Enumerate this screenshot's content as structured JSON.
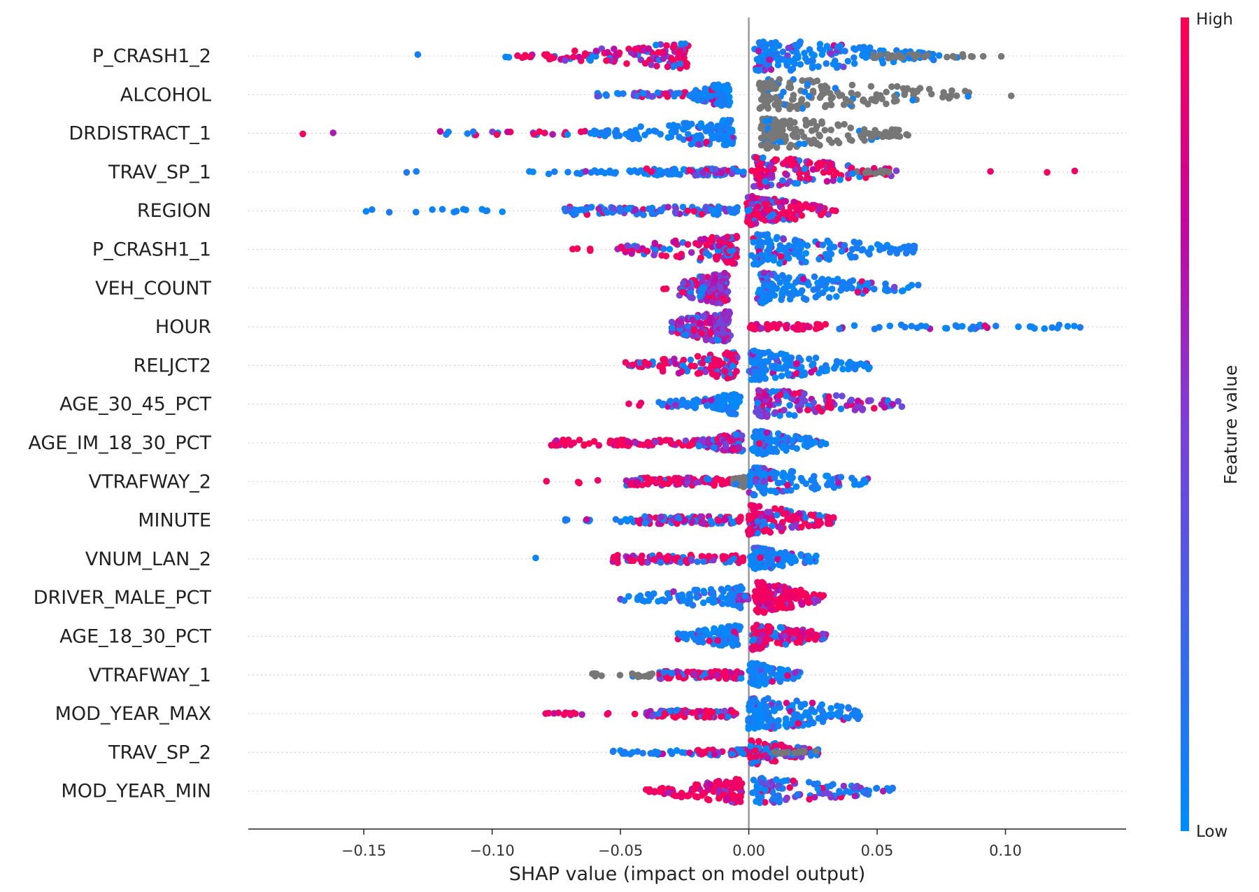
{
  "chart_data": {
    "type": "scatter",
    "subtype": "shap-beeswarm",
    "xlabel": "SHAP value (impact on model output)",
    "ylabel": "",
    "xlim": [
      -0.195,
      0.147
    ],
    "xticks": [
      -0.15,
      -0.1,
      -0.05,
      0.0,
      0.05,
      0.1
    ],
    "xtick_labels": [
      "−0.15",
      "−0.10",
      "−0.05",
      "0.00",
      "0.05",
      "0.10"
    ],
    "zero_line": true,
    "row_gridlines": "dotted",
    "colorbar": {
      "title": "Feature value",
      "high_label": "High",
      "low_label": "Low",
      "high_color": "#ff0051",
      "low_color": "#008bfb",
      "missing_color": "#777777",
      "placement": "right"
    },
    "features": [
      {
        "name": "P_CRASH1_2",
        "clusters": [
          {
            "xmin": -0.129,
            "xmax": -0.128,
            "n": 1,
            "color": "low"
          },
          {
            "xmin": -0.095,
            "xmax": -0.078,
            "n": 14,
            "color": "mixed"
          },
          {
            "xmin": -0.078,
            "xmax": -0.015,
            "n": 120,
            "color": "high-purple",
            "peak": -0.025
          },
          {
            "xmin": 0.001,
            "xmax": 0.072,
            "n": 180,
            "color": "low",
            "peak": 0.004
          },
          {
            "xmin": 0.045,
            "xmax": 0.07,
            "n": 30,
            "color": "missing"
          },
          {
            "xmin": 0.074,
            "xmax": 0.1,
            "n": 12,
            "color": "missing"
          }
        ]
      },
      {
        "name": "ALCOHOL",
        "clusters": [
          {
            "xmin": -0.06,
            "xmax": -0.045,
            "n": 8,
            "color": "low"
          },
          {
            "xmin": -0.045,
            "xmax": -0.02,
            "n": 40,
            "color": "mixed"
          },
          {
            "xmin": -0.022,
            "xmax": -0.004,
            "n": 110,
            "color": "low",
            "peak": -0.009
          },
          {
            "xmin": 0.002,
            "xmax": 0.09,
            "n": 170,
            "color": "missing",
            "peak": 0.006
          },
          {
            "xmin": 0.1,
            "xmax": 0.104,
            "n": 1,
            "color": "missing"
          }
        ]
      },
      {
        "name": "DRDISTRACT_1",
        "clusters": [
          {
            "xmin": -0.18,
            "xmax": -0.155,
            "n": 2,
            "color": "high"
          },
          {
            "xmin": -0.123,
            "xmax": -0.065,
            "n": 22,
            "color": "mixed"
          },
          {
            "xmin": -0.065,
            "xmax": -0.004,
            "n": 130,
            "color": "low",
            "peak": -0.007
          },
          {
            "xmin": 0.002,
            "xmax": 0.063,
            "n": 170,
            "color": "missing",
            "peak": 0.006
          }
        ]
      },
      {
        "name": "TRAV_SP_1",
        "clusters": [
          {
            "xmin": -0.135,
            "xmax": -0.12,
            "n": 2,
            "color": "low"
          },
          {
            "xmin": -0.09,
            "xmax": -0.04,
            "n": 28,
            "color": "low"
          },
          {
            "xmin": -0.04,
            "xmax": -0.002,
            "n": 80,
            "color": "low-purple"
          },
          {
            "xmin": -0.005,
            "xmax": 0.058,
            "n": 150,
            "color": "high-purple",
            "peak": 0.003
          },
          {
            "xmin": 0.04,
            "xmax": 0.058,
            "n": 12,
            "color": "missing"
          },
          {
            "xmin": 0.092,
            "xmax": 0.133,
            "n": 3,
            "color": "high"
          }
        ]
      },
      {
        "name": "REGION",
        "clusters": [
          {
            "xmin": -0.15,
            "xmax": -0.095,
            "n": 14,
            "color": "low"
          },
          {
            "xmin": -0.072,
            "xmax": -0.004,
            "n": 110,
            "color": "low-purple"
          },
          {
            "xmin": -0.002,
            "xmax": 0.034,
            "n": 140,
            "color": "high-purple",
            "peak": 0.001
          }
        ]
      },
      {
        "name": "P_CRASH1_1",
        "clusters": [
          {
            "xmin": -0.077,
            "xmax": -0.06,
            "n": 4,
            "color": "high"
          },
          {
            "xmin": -0.053,
            "xmax": -0.002,
            "n": 130,
            "color": "high-purple",
            "peak": -0.006
          },
          {
            "xmin": 0.001,
            "xmax": 0.066,
            "n": 160,
            "color": "low",
            "peak": 0.003
          }
        ]
      },
      {
        "name": "VEH_COUNT",
        "clusters": [
          {
            "xmin": -0.038,
            "xmax": -0.03,
            "n": 2,
            "color": "high"
          },
          {
            "xmin": -0.027,
            "xmax": 0.001,
            "n": 150,
            "color": "purple",
            "peak": -0.01
          },
          {
            "xmin": 0.003,
            "xmax": 0.066,
            "n": 150,
            "color": "low",
            "peak": 0.005
          }
        ]
      },
      {
        "name": "HOUR",
        "clusters": [
          {
            "xmin": -0.03,
            "xmax": 0.0,
            "n": 160,
            "color": "purple",
            "peak": -0.009
          },
          {
            "xmin": 0.0,
            "xmax": 0.03,
            "n": 50,
            "color": "high"
          },
          {
            "xmin": 0.03,
            "xmax": 0.13,
            "n": 40,
            "color": "low"
          }
        ]
      },
      {
        "name": "RELJCT2",
        "clusters": [
          {
            "xmin": -0.048,
            "xmax": -0.002,
            "n": 120,
            "color": "high-purple",
            "peak": -0.006
          },
          {
            "xmin": 0.0,
            "xmax": 0.047,
            "n": 140,
            "color": "low",
            "peak": 0.002
          }
        ]
      },
      {
        "name": "AGE_30_45_PCT",
        "clusters": [
          {
            "xmin": -0.048,
            "xmax": -0.035,
            "n": 3,
            "color": "high"
          },
          {
            "xmin": -0.035,
            "xmax": -0.002,
            "n": 90,
            "color": "low",
            "peak": -0.005
          },
          {
            "xmin": -0.002,
            "xmax": 0.061,
            "n": 140,
            "color": "purple",
            "peak": 0.004
          }
        ]
      },
      {
        "name": "AGE_IM_18_30_PCT",
        "clusters": [
          {
            "xmin": -0.077,
            "xmax": -0.02,
            "n": 70,
            "color": "high"
          },
          {
            "xmin": -0.02,
            "xmax": 0.0,
            "n": 90,
            "color": "purple",
            "peak": -0.004
          },
          {
            "xmin": 0.0,
            "xmax": 0.03,
            "n": 110,
            "color": "low",
            "peak": 0.003
          }
        ]
      },
      {
        "name": "VTRAFWAY_2",
        "clusters": [
          {
            "xmin": -0.082,
            "xmax": -0.055,
            "n": 4,
            "color": "high"
          },
          {
            "xmin": -0.048,
            "xmax": -0.004,
            "n": 100,
            "color": "high-purple"
          },
          {
            "xmin": -0.006,
            "xmax": 0.0,
            "n": 40,
            "color": "missing",
            "peak": -0.002
          },
          {
            "xmin": 0.0,
            "xmax": 0.048,
            "n": 130,
            "color": "low",
            "peak": 0.002
          }
        ]
      },
      {
        "name": "MINUTE",
        "clusters": [
          {
            "xmin": -0.072,
            "xmax": -0.045,
            "n": 12,
            "color": "low"
          },
          {
            "xmin": -0.045,
            "xmax": -0.002,
            "n": 100,
            "color": "mixed"
          },
          {
            "xmin": -0.002,
            "xmax": 0.033,
            "n": 150,
            "color": "high-purple",
            "peak": 0.001
          }
        ]
      },
      {
        "name": "VNUM_LAN_2",
        "clusters": [
          {
            "xmin": -0.084,
            "xmax": -0.083,
            "n": 1,
            "color": "purple"
          },
          {
            "xmin": -0.053,
            "xmax": -0.002,
            "n": 100,
            "color": "high-purple"
          },
          {
            "xmin": 0.0,
            "xmax": 0.027,
            "n": 110,
            "color": "low",
            "peak": 0.002
          }
        ]
      },
      {
        "name": "DRIVER_MALE_PCT",
        "clusters": [
          {
            "xmin": -0.05,
            "xmax": -0.002,
            "n": 100,
            "color": "low",
            "peak": -0.004
          },
          {
            "xmin": -0.004,
            "xmax": 0.0,
            "n": 30,
            "color": "purple"
          },
          {
            "xmin": 0.0,
            "xmax": 0.03,
            "n": 150,
            "color": "high",
            "peak": 0.004
          }
        ]
      },
      {
        "name": "AGE_18_30_PCT",
        "clusters": [
          {
            "xmin": -0.028,
            "xmax": -0.002,
            "n": 100,
            "color": "low",
            "peak": -0.005
          },
          {
            "xmin": 0.0,
            "xmax": 0.03,
            "n": 130,
            "color": "high-purple",
            "peak": 0.003
          }
        ]
      },
      {
        "name": "VTRAFWAY_1",
        "clusters": [
          {
            "xmin": -0.066,
            "xmax": -0.048,
            "n": 6,
            "color": "missing"
          },
          {
            "xmin": -0.046,
            "xmax": -0.03,
            "n": 20,
            "color": "missing"
          },
          {
            "xmin": -0.035,
            "xmax": -0.002,
            "n": 90,
            "color": "high-purple"
          },
          {
            "xmin": 0.0,
            "xmax": 0.02,
            "n": 110,
            "color": "low",
            "peak": 0.002
          }
        ]
      },
      {
        "name": "MOD_YEAR_MAX",
        "clusters": [
          {
            "xmin": -0.085,
            "xmax": -0.04,
            "n": 14,
            "color": "high"
          },
          {
            "xmin": -0.04,
            "xmax": -0.005,
            "n": 90,
            "color": "high-purple"
          },
          {
            "xmin": -0.01,
            "xmax": 0.044,
            "n": 170,
            "color": "low",
            "peak": 0.001
          }
        ]
      },
      {
        "name": "TRAV_SP_2",
        "clusters": [
          {
            "xmin": -0.053,
            "xmax": -0.02,
            "n": 30,
            "color": "low"
          },
          {
            "xmin": -0.02,
            "xmax": 0.0,
            "n": 60,
            "color": "mixed"
          },
          {
            "xmin": 0.0,
            "xmax": 0.027,
            "n": 110,
            "color": "mixed",
            "peak": 0.002
          },
          {
            "xmin": 0.008,
            "xmax": 0.027,
            "n": 14,
            "color": "missing"
          }
        ]
      },
      {
        "name": "MOD_YEAR_MIN",
        "clusters": [
          {
            "xmin": -0.04,
            "xmax": -0.002,
            "n": 110,
            "color": "high",
            "peak": -0.004
          },
          {
            "xmin": 0.0,
            "xmax": 0.056,
            "n": 120,
            "color": "low-purple",
            "peak": 0.003
          }
        ]
      }
    ]
  }
}
